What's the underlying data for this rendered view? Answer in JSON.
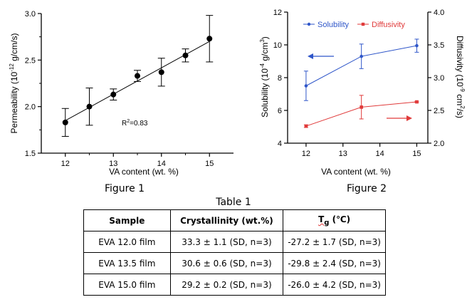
{
  "chart_data": [
    {
      "type": "scatter",
      "title": "",
      "xlabel": "VA content (wt. %)",
      "ylabel": "Permeability (10",
      "ylabel_exp": "-12",
      "ylabel_tail": " g/cm/s)",
      "xlim": [
        11.5,
        15.5
      ],
      "ylim": [
        1.5,
        3.0
      ],
      "x_ticks": [
        "12",
        "13",
        "14",
        "15"
      ],
      "y_ticks": [
        "1.5",
        "2.0",
        "2.5",
        "3.0"
      ],
      "grid": false,
      "annotation": {
        "prefix": "R",
        "exp": "2",
        "suffix": "=0.83"
      },
      "x": [
        12,
        12.5,
        13,
        13.5,
        14,
        14.5,
        15
      ],
      "y": [
        1.83,
        2.0,
        2.13,
        2.33,
        2.37,
        2.55,
        2.73
      ],
      "err": [
        0.15,
        0.2,
        0.06,
        0.06,
        0.15,
        0.07,
        0.25
      ],
      "trendline": {
        "x": [
          12,
          15
        ],
        "y": [
          1.85,
          2.7
        ]
      },
      "color": "#000000"
    },
    {
      "type": "line",
      "title": "",
      "xlabel": "VA content (wt. %)",
      "ylabel_left": "Solubility (10",
      "ylabel_left_exp1": "-4",
      "ylabel_left_mid": " g/cm",
      "ylabel_left_exp2": "3",
      "ylabel_left_tail": ")",
      "ylabel_right": "Diffusivity (10",
      "ylabel_right_exp1": "-9",
      "ylabel_right_mid": " cm",
      "ylabel_right_exp2": "2",
      "ylabel_right_tail": "/s)",
      "xlim": [
        11.5,
        15.3
      ],
      "ylim_left": [
        4,
        12
      ],
      "ylim_right": [
        2.0,
        4.0
      ],
      "x_ticks": [
        "12",
        "13",
        "14",
        "15"
      ],
      "y_ticks_left": [
        "4",
        "6",
        "8",
        "10",
        "12"
      ],
      "y_ticks_right": [
        "2.0",
        "2.5",
        "3.0",
        "3.5",
        "4.0"
      ],
      "legend_position": "top",
      "grid": false,
      "series": [
        {
          "name": "Solubility",
          "axis": "left",
          "color": "#2f56c9",
          "x": [
            12,
            13.5,
            15
          ],
          "y": [
            7.5,
            9.3,
            9.95
          ],
          "err": [
            0.9,
            0.75,
            0.4
          ]
        },
        {
          "name": "Diffusivity",
          "axis": "right",
          "color": "#e03a3a",
          "x": [
            12,
            13.5,
            15
          ],
          "y": [
            2.26,
            2.55,
            2.63
          ],
          "err": [
            0.02,
            0.18,
            0.01
          ]
        }
      ]
    }
  ],
  "captions": {
    "figure1": "Figure 1",
    "figure2": "Figure 2",
    "table1": "Table 1"
  },
  "table": {
    "headers": {
      "sample": "Sample",
      "crystallinity": "Crystallinity (wt.%)",
      "tg_symbol": "T",
      "tg_sub": "g",
      "tg_unit": " (℃)"
    },
    "rows": [
      {
        "sample": "EVA 12.0 film",
        "crystallinity": "33.3 ± 1.1 (SD, n=3)",
        "tg": "-27.2 ± 1.7 (SD, n=3)"
      },
      {
        "sample": "EVA 13.5 film",
        "crystallinity": "30.6 ± 0.6 (SD, n=3)",
        "tg": "-29.8 ± 2.4 (SD, n=3)"
      },
      {
        "sample": "EVA 15.0 film",
        "crystallinity": "29.2 ± 0.2 (SD, n=3)",
        "tg": "-26.0 ± 4.2 (SD, n=3)"
      }
    ]
  }
}
